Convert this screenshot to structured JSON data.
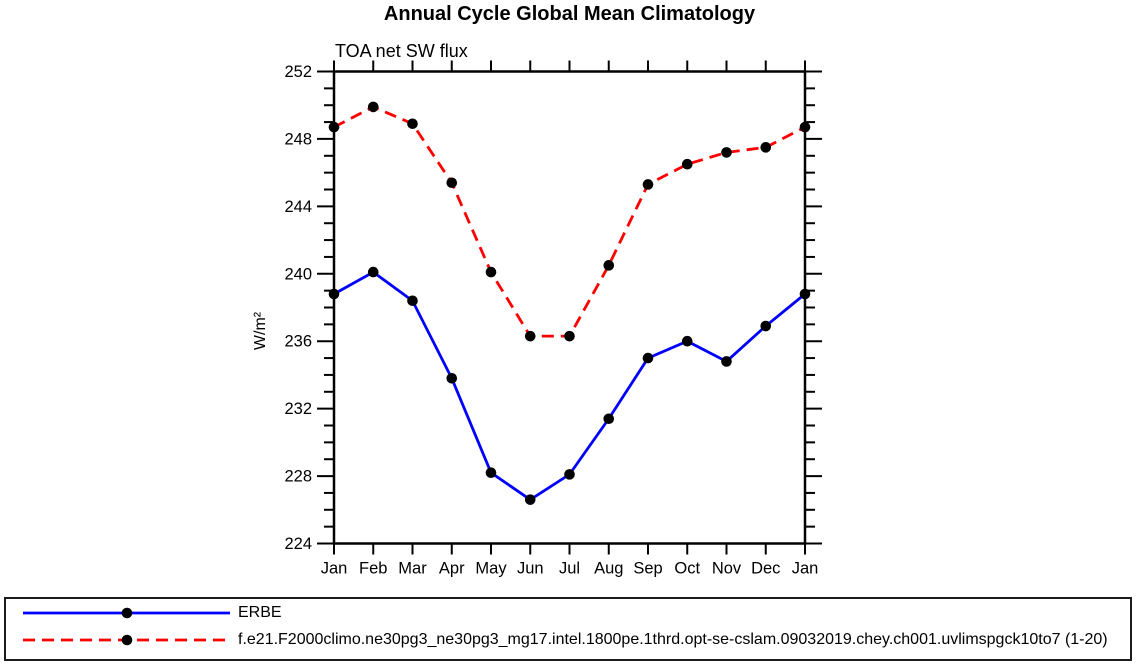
{
  "title": "Annual Cycle Global Mean Climatology",
  "subtitle": "TOA net SW flux",
  "ylabel": "W/m²",
  "legend": {
    "items": [
      {
        "label": "ERBE",
        "color": "#0000ff",
        "line_style": "solid",
        "marker_color": "#000000"
      },
      {
        "label": "f.e21.F2000climo.ne30pg3_ne30pg3_mg17.intel.1800pe.1thrd.opt-se-cslam.09032019.chey.ch001.uvlimspgck10to7 (1-20)",
        "color": "#ff0000",
        "line_style": "dashed",
        "marker_color": "#000000"
      }
    ]
  },
  "chart_data": {
    "type": "line",
    "title": "Annual Cycle Global Mean Climatology",
    "subtitle": "TOA net SW flux",
    "xlabel": "",
    "ylabel": "W/m²",
    "categories": [
      "Jan",
      "Feb",
      "Mar",
      "Apr",
      "May",
      "Jun",
      "Jul",
      "Aug",
      "Sep",
      "Oct",
      "Nov",
      "Dec",
      "Jan"
    ],
    "ylim": [
      224,
      252
    ],
    "ytick_major_step": 4,
    "ytick_minor_step": 1,
    "grid": false,
    "legend_position": "bottom",
    "series": [
      {
        "name": "ERBE",
        "color": "#0000ff",
        "style": "solid",
        "marker": "filled-circle",
        "marker_color": "#000000",
        "values": [
          238.8,
          240.1,
          238.4,
          233.8,
          228.2,
          226.6,
          228.1,
          231.4,
          235.0,
          236.0,
          234.8,
          236.9,
          238.8
        ]
      },
      {
        "name": "f.e21.F2000climo.ne30pg3_ne30pg3_mg17.intel.1800pe.1thrd.opt-se-cslam.09032019.chey.ch001.uvlimspgck10to7 (1-20)",
        "color": "#ff0000",
        "style": "dashed",
        "marker": "filled-circle",
        "marker_color": "#000000",
        "values": [
          248.7,
          249.9,
          248.9,
          245.4,
          240.1,
          236.3,
          236.3,
          240.5,
          245.3,
          246.5,
          247.2,
          247.5,
          248.7
        ]
      }
    ]
  }
}
